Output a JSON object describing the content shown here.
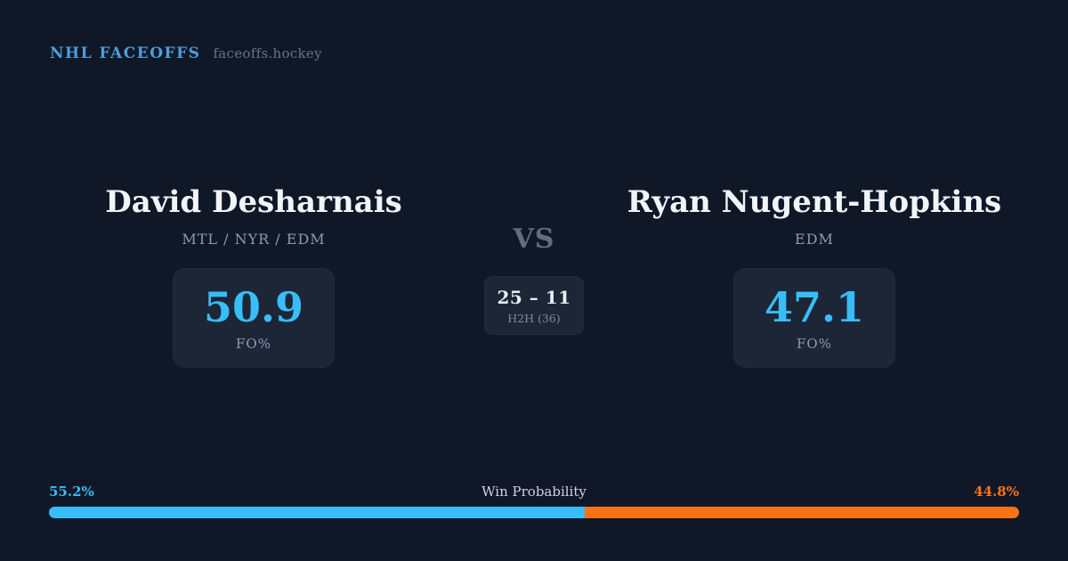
{
  "header": {
    "brand": "NHL FACEOFFS",
    "site": "faceoffs.hockey"
  },
  "matchup": {
    "vs_label": "VS",
    "left": {
      "name": "David Desharnais",
      "teams": "MTL / NYR / EDM",
      "stat_value": "50.9",
      "stat_label": "FO%"
    },
    "right": {
      "name": "Ryan Nugent-Hopkins",
      "teams": "EDM",
      "stat_value": "47.1",
      "stat_label": "FO%"
    },
    "h2h": {
      "record": "25 – 11",
      "label": "H2H (36)"
    }
  },
  "win_probability": {
    "title": "Win Probability",
    "left": {
      "text": "55.2%",
      "value": 55.2,
      "color": "#38bdf8",
      "player": "David Desharnais"
    },
    "right": {
      "text": "44.8%",
      "value": 44.8,
      "color": "#f97316",
      "player": "Ryan Nugent-Hopkins"
    }
  },
  "colors": {
    "background": "#101828",
    "card": "#1c2637",
    "accent_blue": "#38bdf8",
    "accent_orange": "#f97316",
    "brand_blue": "#4e9dda",
    "muted_gray": "#8b9bb0",
    "white": "#f1f5f9"
  }
}
